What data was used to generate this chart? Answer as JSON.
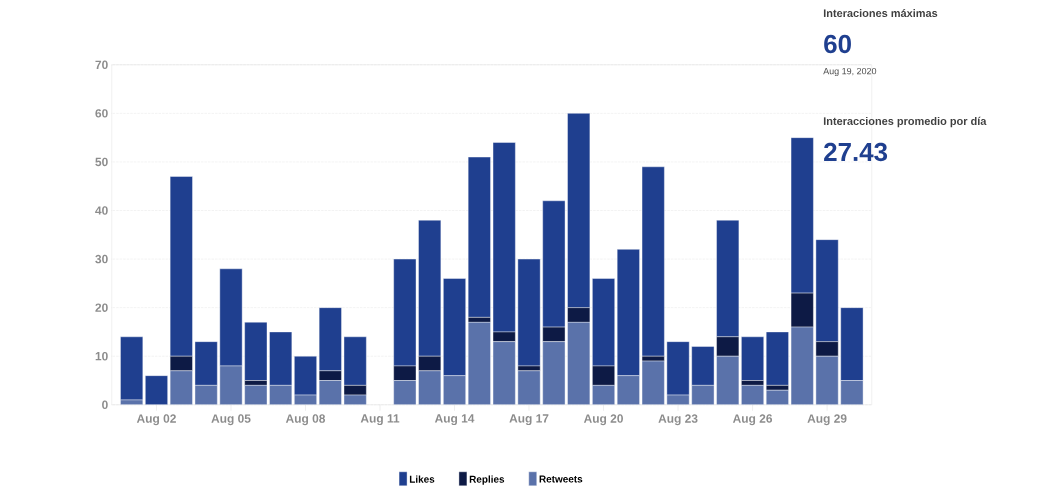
{
  "chart_data": {
    "type": "bar",
    "stacked": true,
    "categories": [
      null,
      "Aug 02",
      null,
      null,
      "Aug 05",
      null,
      null,
      "Aug 08",
      null,
      null,
      "Aug 11",
      null,
      null,
      "Aug 14",
      null,
      null,
      "Aug 17",
      null,
      null,
      "Aug 20",
      null,
      null,
      "Aug 23",
      null,
      null,
      "Aug 26",
      null,
      null,
      "Aug 29",
      null
    ],
    "series": [
      {
        "name": "Retweets",
        "color": "#5a72aa",
        "values": [
          1,
          0,
          7,
          4,
          8,
          4,
          4,
          2,
          5,
          2,
          null,
          5,
          7,
          6,
          17,
          13,
          7,
          13,
          17,
          4,
          6,
          9,
          2,
          4,
          10,
          4,
          3,
          16,
          10,
          5
        ]
      },
      {
        "name": "Replies",
        "color": "#0d1a45",
        "values": [
          0,
          0,
          3,
          0,
          0,
          1,
          0,
          0,
          2,
          2,
          null,
          3,
          3,
          0,
          1,
          2,
          1,
          3,
          3,
          4,
          0,
          1,
          0,
          0,
          4,
          1,
          1,
          7,
          3,
          0
        ]
      },
      {
        "name": "Likes",
        "color": "#1f3f8f",
        "values": [
          13,
          6,
          37,
          9,
          20,
          12,
          11,
          8,
          13,
          10,
          null,
          22,
          28,
          20,
          33,
          39,
          22,
          26,
          40,
          18,
          26,
          39,
          11,
          8,
          24,
          9,
          11,
          32,
          21,
          15
        ]
      }
    ],
    "ylim": [
      0,
      70
    ],
    "yticks": [
      0,
      10,
      20,
      30,
      40,
      50,
      60,
      70
    ],
    "grid": "y",
    "legend": "bottom",
    "annotations": [
      "Interaciones máximas",
      "60",
      "Aug 19, 2020",
      "Interacciones promedio por día",
      "27.43"
    ]
  }
}
